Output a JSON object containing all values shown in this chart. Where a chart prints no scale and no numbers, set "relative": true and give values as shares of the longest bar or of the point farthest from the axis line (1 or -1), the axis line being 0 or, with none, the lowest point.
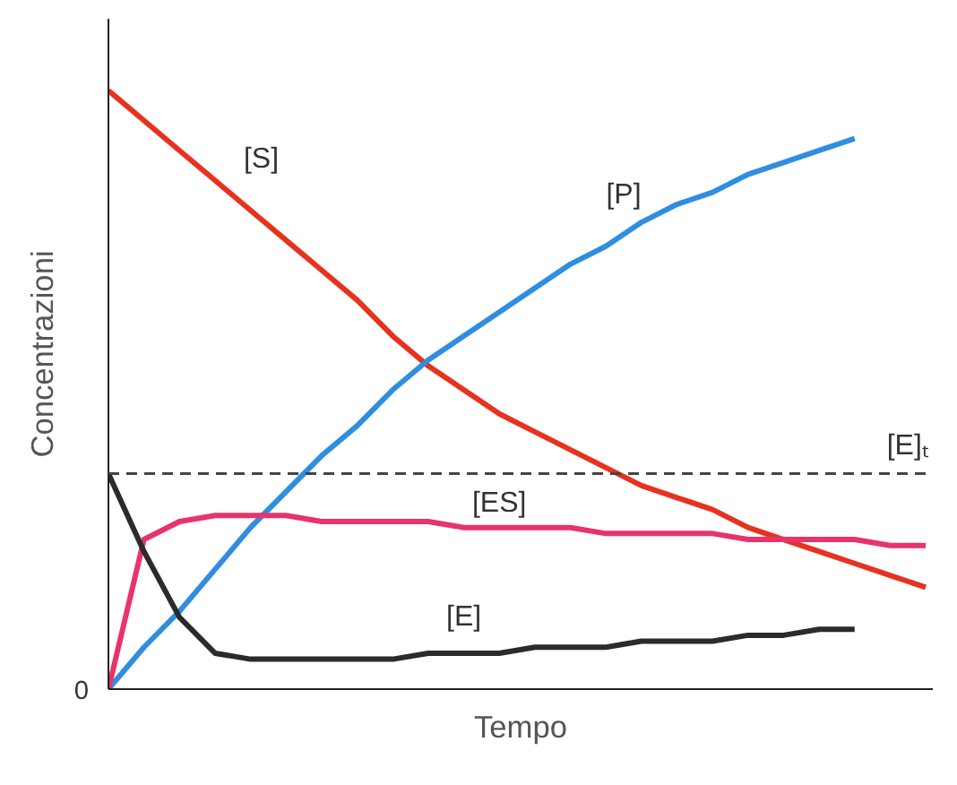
{
  "chart_data": {
    "type": "line",
    "relative": true,
    "xlabel": "Tempo",
    "ylabel": "Concentrazioni",
    "annotations": [
      "0"
    ],
    "categories": [
      null,
      null,
      null,
      null,
      null,
      null,
      null,
      null,
      null,
      null,
      null,
      null,
      null,
      null,
      null,
      null,
      null,
      null,
      null,
      null,
      null,
      null,
      null,
      null
    ],
    "series": [
      {
        "name": "[S]",
        "color": "#e8321e",
        "values": [
          1.0,
          0.95,
          0.9,
          0.85,
          0.8,
          0.75,
          0.7,
          0.65,
          0.59,
          0.54,
          0.5,
          0.46,
          0.43,
          0.4,
          0.37,
          0.34,
          0.32,
          0.3,
          0.27,
          0.25,
          0.23,
          0.21,
          0.19,
          0.17
        ]
      },
      {
        "name": "[P]",
        "color": "#2f8ee0",
        "values": [
          0,
          0.07,
          0.13,
          0.2,
          0.27,
          0.33,
          0.39,
          0.44,
          0.5,
          0.55,
          0.59,
          0.63,
          0.67,
          0.71,
          0.74,
          0.78,
          0.81,
          0.83,
          0.86,
          0.88,
          0.9,
          0.92,
          null,
          null
        ]
      },
      {
        "name": "[ES]",
        "color": "#e8336b",
        "values": [
          0,
          0.25,
          0.28,
          0.29,
          0.29,
          0.29,
          0.28,
          0.28,
          0.28,
          0.28,
          0.27,
          0.27,
          0.27,
          0.27,
          0.26,
          0.26,
          0.26,
          0.26,
          0.25,
          0.25,
          0.25,
          0.25,
          0.24,
          0.24
        ]
      },
      {
        "name": "[E]",
        "color": "#2b2b2b",
        "values": [
          0.36,
          0.23,
          0.12,
          0.06,
          0.05,
          0.05,
          0.05,
          0.05,
          0.05,
          0.06,
          0.06,
          0.06,
          0.07,
          0.07,
          0.07,
          0.08,
          0.08,
          0.08,
          0.09,
          0.09,
          0.1,
          0.1,
          null,
          null
        ]
      }
    ],
    "ref_lines": [
      {
        "axis": "y",
        "value": 0.36,
        "label": "[E]ₜ",
        "color": "#444444",
        "line_style": "dashed"
      }
    ],
    "grid": false,
    "legend": false,
    "marker": "none",
    "line_style": "solid"
  }
}
